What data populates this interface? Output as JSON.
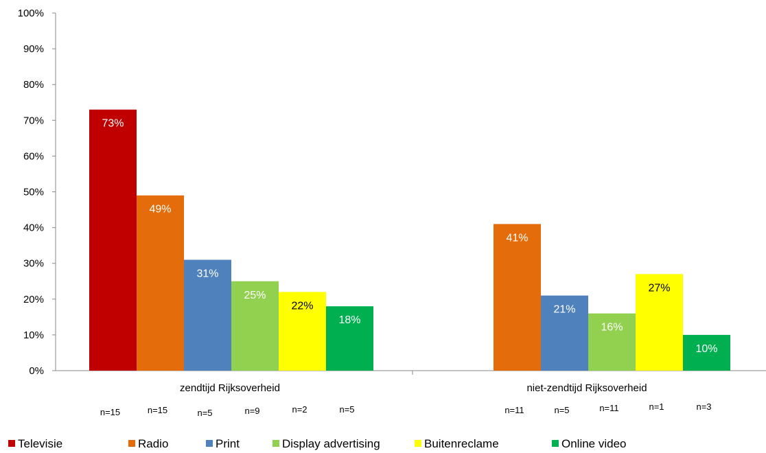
{
  "chart_data": {
    "type": "bar",
    "ylim": [
      0,
      100
    ],
    "y_ticks": [
      "0%",
      "10%",
      "20%",
      "30%",
      "40%",
      "50%",
      "60%",
      "70%",
      "80%",
      "90%",
      "100%"
    ],
    "categories": [
      "zendtijd Rijksoverheid",
      "niet-zendtijd Rijksoverheid"
    ],
    "series": [
      {
        "name": "Televisie",
        "color": "#c00000",
        "values": [
          73,
          null
        ],
        "labels": [
          "73%",
          null
        ],
        "n": [
          "n=15",
          null
        ]
      },
      {
        "name": "Radio",
        "color": "#e46c0a",
        "values": [
          49,
          41
        ],
        "labels": [
          "49%",
          "41%"
        ],
        "n": [
          "n=15",
          "n=11"
        ]
      },
      {
        "name": "Print",
        "color": "#4f81bd",
        "values": [
          31,
          21
        ],
        "labels": [
          "31%",
          "21%"
        ],
        "n": [
          "n=5",
          "n=5"
        ]
      },
      {
        "name": "Display advertising",
        "color": "#92d050",
        "values": [
          25,
          16
        ],
        "labels": [
          "25%",
          "16%"
        ],
        "n": [
          "n=9",
          "n=11"
        ]
      },
      {
        "name": "Buitenreclame",
        "color": "#ffff00",
        "values": [
          22,
          27
        ],
        "labels": [
          "22%",
          "27%"
        ],
        "n": [
          "n=2",
          "n=1"
        ]
      },
      {
        "name": "Online video",
        "color": "#00b050",
        "values": [
          18,
          10
        ],
        "labels": [
          "18%",
          "10%"
        ],
        "n": [
          "n=5",
          "n=3"
        ]
      }
    ],
    "legend_position": "bottom",
    "grid": false
  }
}
